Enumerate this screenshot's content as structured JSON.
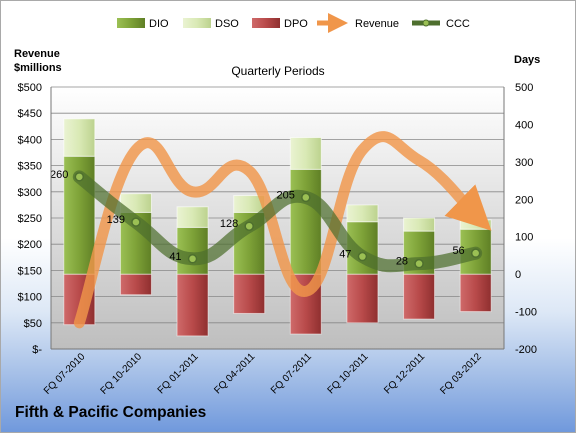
{
  "company": "Fifth & Pacific Companies",
  "chart_data": {
    "type": "bar",
    "subtitle": "Quarterly Periods",
    "left_axis_title": "Revenue\n$millions",
    "right_axis_title": "Days",
    "categories": [
      "FQ 07-2010",
      "FQ 10-2010",
      "FQ 01-2011",
      "FQ 04-2011",
      "FQ 07-2011",
      "FQ 10-2011",
      "FQ 12-2011",
      "FQ 03-2012"
    ],
    "left_axis": {
      "min": 0,
      "max": 500,
      "step": 50,
      "tick_labels": [
        "$-",
        "$50",
        "$100",
        "$150",
        "$200",
        "$250",
        "$300",
        "$350",
        "$400",
        "$450",
        "$500"
      ]
    },
    "right_axis": {
      "min": -200,
      "max": 500,
      "step": 100,
      "tick_labels": [
        "-200",
        "-100",
        "0",
        "100",
        "200",
        "300",
        "400",
        "500"
      ]
    },
    "series": [
      {
        "name": "DIO",
        "axis": "right",
        "color": "#7ea238",
        "values": [
          315,
          165,
          125,
          165,
          280,
          140,
          115,
          120
        ]
      },
      {
        "name": "DSO",
        "axis": "right",
        "color": "#d9e9b5",
        "values": [
          100,
          50,
          55,
          45,
          85,
          45,
          35,
          25
        ]
      },
      {
        "name": "DPO",
        "axis": "right",
        "color": "#b84a4a",
        "values": [
          -135,
          -55,
          -165,
          -105,
          -160,
          -130,
          -120,
          -100
        ]
      },
      {
        "name": "Revenue",
        "axis": "left",
        "color": "#f0964a",
        "values": [
          50,
          380,
          300,
          340,
          110,
          380,
          360,
          255
        ]
      },
      {
        "name": "CCC",
        "axis": "right",
        "color": "#4e6f2e",
        "values": [
          260,
          139,
          41,
          128,
          205,
          47,
          28,
          56
        ]
      }
    ],
    "ccc_labels": [
      "260",
      "139",
      "41",
      "128",
      "205",
      "47",
      "28",
      "56"
    ],
    "legend": "top"
  }
}
